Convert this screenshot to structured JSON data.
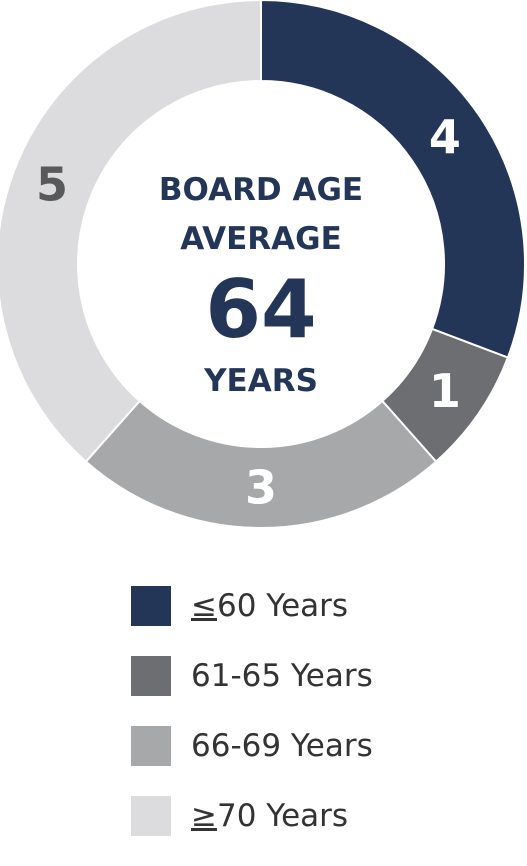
{
  "chart_data": {
    "type": "pie",
    "style": "donut",
    "categories": [
      "<u>≤60</u> Years",
      "61-65 Years",
      "66-69 Years",
      "≥70 Years"
    ],
    "legend_entries": [
      {
        "prefix": "≤",
        "text": "60 Years"
      },
      {
        "prefix": "",
        "text": "61-65 Years"
      },
      {
        "prefix": "",
        "text": "66-69 Years"
      },
      {
        "prefix": "≥",
        "text": "70 Years"
      }
    ],
    "values": [
      4,
      1,
      3,
      5
    ],
    "colors": [
      "#243658",
      "#6d6e71",
      "#a7a8aa",
      "#dcdcde"
    ],
    "label_colors": [
      "#ffffff",
      "#ffffff",
      "#ffffff",
      "#58595b"
    ],
    "center_text": {
      "line1": "BOARD AGE",
      "line2": "AVERAGE",
      "value": "64",
      "line3": "YEARS"
    },
    "legend_position": "bottom"
  }
}
